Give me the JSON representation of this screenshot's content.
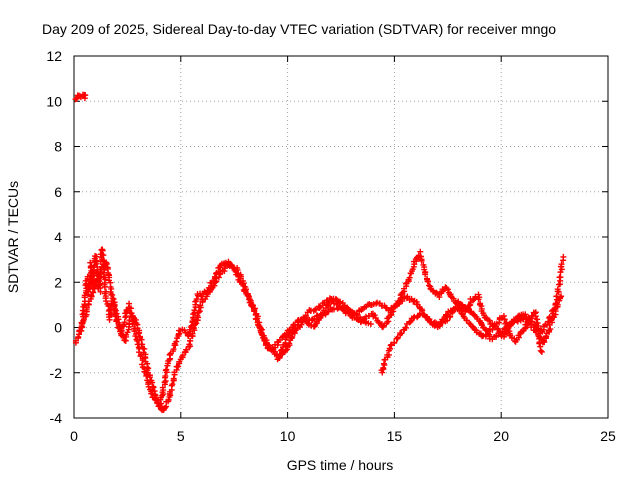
{
  "chart_data": {
    "type": "scatter",
    "title": "Day 209 of 2025, Sidereal Day-to-day VTEC variation (SDTVAR) for receiver mngo",
    "xlabel": "GPS time / hours",
    "ylabel": "SDTVAR / TECUs",
    "xlim": [
      0,
      25
    ],
    "ylim": [
      -4,
      12
    ],
    "xticks": [
      0,
      5,
      10,
      15,
      20,
      25
    ],
    "yticks": [
      -4,
      -2,
      0,
      2,
      4,
      6,
      8,
      10,
      12
    ],
    "grid": true,
    "marker": "+",
    "series": [
      {
        "name": "SDTVAR",
        "color": "#ff0000",
        "tracks": [
          {
            "x": [
              0.05,
              0.2,
              0.35,
              0.5,
              0.6
            ],
            "y": [
              10.1,
              10.2,
              10.25,
              10.2,
              10.3
            ]
          },
          {
            "x": [
              0.0,
              0.2,
              0.4,
              0.5,
              0.6,
              0.7,
              0.8,
              0.9,
              1.0,
              1.1,
              1.2,
              1.3,
              1.4,
              1.5,
              1.6,
              1.7,
              1.8,
              2.0,
              2.2,
              2.4,
              2.6,
              2.8,
              3.0,
              3.2,
              3.4,
              3.6,
              3.8,
              4.0,
              4.1,
              4.2,
              4.3,
              4.4,
              4.6,
              4.8,
              5.0,
              5.2,
              5.4,
              5.6,
              5.8,
              6.0,
              6.3,
              6.6,
              6.9,
              7.2,
              7.5,
              7.8,
              8.1,
              8.4,
              8.7,
              9.0,
              9.3,
              9.6,
              9.9,
              10.2,
              10.5,
              10.8,
              11.1,
              11.4,
              11.7,
              12.0,
              12.3,
              12.6,
              12.9,
              13.2,
              13.5,
              13.8,
              14.1,
              14.4,
              14.7,
              15.0,
              15.3,
              15.6,
              15.9,
              16.2,
              16.5,
              16.8,
              17.1,
              17.4,
              17.7,
              18.0,
              18.3,
              18.6,
              18.9,
              19.2,
              19.5,
              19.8,
              20.1,
              20.4,
              20.7,
              21.0,
              21.3,
              21.6,
              21.9,
              22.2,
              22.4,
              22.6,
              22.8,
              22.9
            ],
            "y": [
              -0.7,
              -0.4,
              0.3,
              1.2,
              2.2,
              1.5,
              2.8,
              1.8,
              3.2,
              2.2,
              1.6,
              3.5,
              2.4,
              1.4,
              0.9,
              0.4,
              1.2,
              0.3,
              -0.3,
              0.5,
              1.0,
              0.1,
              -0.8,
              -1.5,
              -2.2,
              -2.9,
              -3.2,
              -3.5,
              -3.1,
              -2.6,
              -2.0,
              -1.6,
              -1.0,
              -0.5,
              -0.1,
              -0.2,
              -0.4,
              0.6,
              1.5,
              1.4,
              1.7,
              2.2,
              2.8,
              2.9,
              2.6,
              2.0,
              1.5,
              0.9,
              0.1,
              -0.8,
              -1.0,
              -0.6,
              -0.3,
              0.0,
              0.3,
              0.4,
              0.3,
              0.5,
              0.6,
              0.8,
              0.8,
              0.9,
              0.7,
              0.6,
              0.8,
              1.0,
              1.1,
              1.0,
              0.8,
              0.9,
              1.3,
              2.0,
              2.8,
              3.3,
              2.2,
              1.6,
              1.4,
              1.8,
              1.3,
              1.0,
              0.7,
              1.2,
              1.4,
              0.5,
              0.2,
              0.0,
              -0.4,
              0.1,
              0.4,
              0.6,
              0.4,
              0.1,
              -0.2,
              0.2,
              0.6,
              1.2,
              2.4,
              3.2
            ]
          },
          {
            "x": [
              0.3,
              0.6,
              0.9,
              1.2,
              1.5,
              1.8,
              2.1,
              2.4,
              2.7,
              3.0,
              3.3,
              3.6,
              3.9,
              4.2,
              4.5,
              4.8,
              5.1,
              5.4,
              5.7,
              6.0,
              6.4,
              6.8,
              7.2,
              7.6,
              8.0,
              8.4,
              8.8,
              9.2,
              9.6,
              10.0,
              10.4,
              10.8,
              11.2,
              11.6,
              12.0,
              12.4,
              12.8,
              13.2,
              13.6,
              14.0
            ],
            "y": [
              -0.2,
              0.8,
              1.6,
              2.3,
              2.9,
              1.4,
              0.2,
              -0.6,
              0.6,
              0.0,
              -1.2,
              -2.4,
              -3.3,
              -3.7,
              -2.9,
              -1.8,
              -1.2,
              -0.8,
              0.2,
              1.2,
              1.6,
              2.3,
              2.8,
              2.6,
              1.8,
              0.8,
              -0.3,
              -0.9,
              -1.3,
              -0.4,
              -0.1,
              0.4,
              0.0,
              0.6,
              1.2,
              1.0,
              0.6,
              0.4,
              0.2,
              0.2
            ]
          },
          {
            "x": [
              14.4,
              14.6,
              14.8,
              15.0,
              15.3,
              15.6,
              15.9,
              16.2,
              16.5,
              16.8,
              17.1,
              17.4,
              17.7,
              18.0,
              18.3,
              18.6,
              18.9,
              19.2,
              19.5,
              19.8,
              20.1,
              20.4,
              20.7,
              21.0,
              21.3,
              21.6,
              21.9
            ],
            "y": [
              -2.0,
              -1.4,
              -0.9,
              -0.6,
              -0.3,
              0.1,
              0.4,
              0.6,
              0.5,
              0.2,
              0.1,
              0.3,
              0.6,
              0.9,
              0.4,
              0.1,
              -0.2,
              -0.4,
              -0.1,
              0.2,
              0.5,
              -0.3,
              -0.6,
              -0.2,
              0.3,
              0.7,
              -1.2
            ]
          },
          {
            "x": [
              9.5,
              10.0,
              10.5,
              11.0,
              11.5,
              12.0,
              12.5,
              13.0,
              13.5,
              14.0,
              14.5,
              15.0,
              15.5,
              16.0,
              16.5,
              17.0,
              17.5,
              18.0,
              18.5,
              19.0,
              19.5,
              20.0,
              20.5,
              21.0,
              21.5,
              22.0,
              22.5,
              22.8
            ],
            "y": [
              -1.4,
              -0.9,
              0.2,
              0.7,
              0.9,
              1.3,
              1.1,
              0.7,
              0.3,
              0.6,
              0.0,
              0.9,
              1.4,
              1.1,
              0.4,
              0.0,
              0.6,
              1.1,
              0.8,
              0.3,
              -0.5,
              -0.2,
              0.2,
              0.4,
              0.0,
              -0.7,
              0.6,
              1.5
            ]
          }
        ]
      }
    ]
  }
}
